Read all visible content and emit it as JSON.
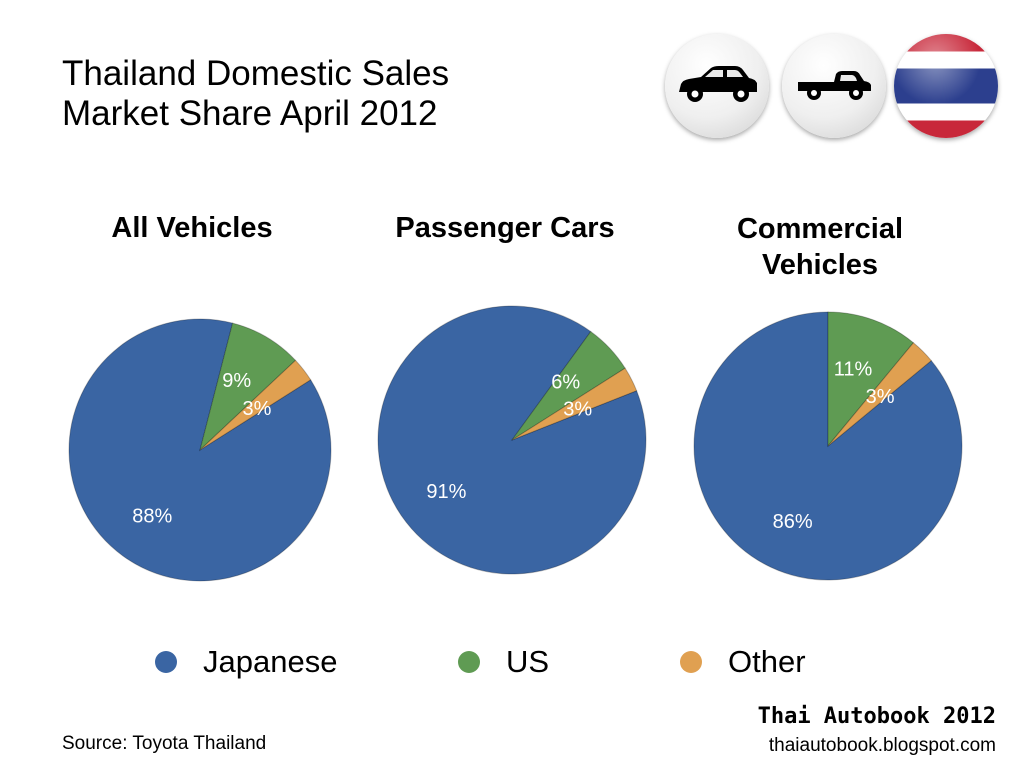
{
  "title_line1": "Thailand Domestic Sales",
  "title_line2": "Market Share April 2012",
  "icons": [
    "car-icon",
    "pickup-truck-icon",
    "thailand-flag-icon"
  ],
  "colors": {
    "japanese": "#3a65a3",
    "us": "#5f9b53",
    "other": "#e0a051"
  },
  "chart_data": [
    {
      "type": "pie",
      "title": "All Vehicles",
      "categories": [
        "Japanese",
        "US",
        "Other"
      ],
      "values": [
        88,
        9,
        3
      ],
      "labels": [
        "88%",
        "9%",
        "3%"
      ]
    },
    {
      "type": "pie",
      "title": "Passenger Cars",
      "categories": [
        "Japanese",
        "US",
        "Other"
      ],
      "values": [
        91,
        6,
        3
      ],
      "labels": [
        "91%",
        "6%",
        "3%"
      ]
    },
    {
      "type": "pie",
      "title": "Commercial Vehicles",
      "categories": [
        "Japanese",
        "US",
        "Other"
      ],
      "values": [
        86,
        11,
        3
      ],
      "labels": [
        "86%",
        "11%",
        "3%"
      ]
    }
  ],
  "chart_titles": {
    "all": "All Vehicles",
    "passenger": "Passenger Cars",
    "commercial_line1": "Commercial",
    "commercial_line2": "Vehicles"
  },
  "legend": [
    {
      "name": "Japanese"
    },
    {
      "name": "US"
    },
    {
      "name": "Other"
    }
  ],
  "source": "Source: Toyota Thailand",
  "brand_title": "Thai Autobook 2012",
  "brand_url": "thaiautobook.blogspot.com"
}
